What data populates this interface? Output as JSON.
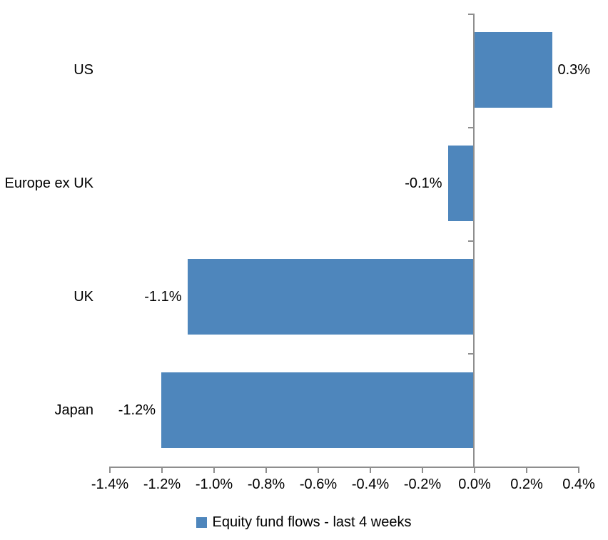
{
  "chart_data": {
    "type": "bar",
    "orientation": "horizontal",
    "title": "",
    "categories": [
      "US",
      "Europe ex UK",
      "UK",
      "Japan"
    ],
    "series": [
      {
        "name": "Equity fund flows - last 4 weeks",
        "values": [
          0.3,
          -0.1,
          -1.1,
          -1.2
        ],
        "value_labels": [
          "0.3%",
          "-0.1%",
          "-1.1%",
          "-1.2%"
        ],
        "color": "#4E86BC"
      }
    ],
    "xlabel": "",
    "ylabel": "",
    "xlim": [
      -1.4,
      0.4
    ],
    "x_ticks": [
      -1.4,
      -1.2,
      -1.0,
      -0.8,
      -0.6,
      -0.4,
      -0.2,
      0.0,
      0.2,
      0.4
    ],
    "x_tick_labels": [
      "-1.4%",
      "-1.2%",
      "-1.0%",
      "-0.8%",
      "-0.6%",
      "-0.4%",
      "-0.2%",
      "0.0%",
      "0.2%",
      "0.4%"
    ],
    "grid": false,
    "legend_position": "bottom",
    "value_label_position": "outside-end",
    "axis_color": "#8E8E8E",
    "text_color": "#000000",
    "background_color": "#FFFFFF"
  }
}
